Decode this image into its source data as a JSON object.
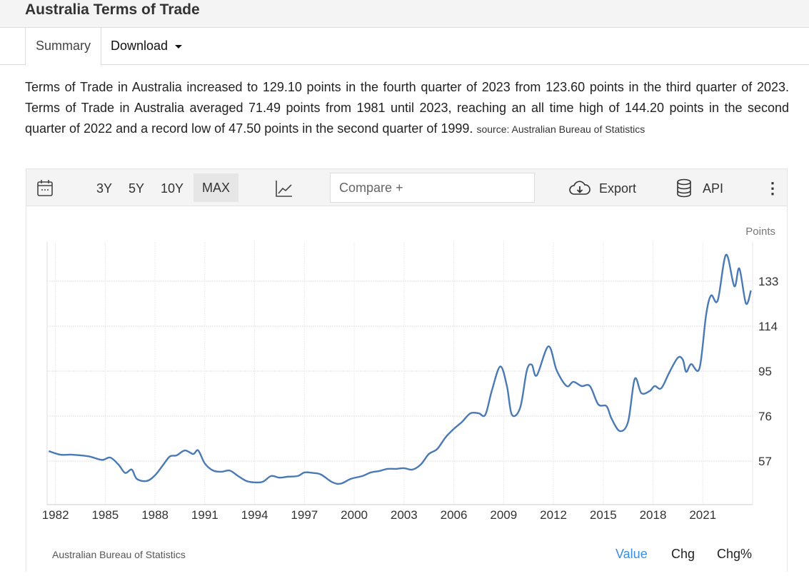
{
  "title": "Australia Terms of Trade",
  "tabs": {
    "summary": "Summary",
    "download": "Download"
  },
  "description": "Terms of Trade in Australia increased to 129.10 points in the fourth quarter of 2023 from 123.60 points in the third quarter of 2023. Terms of Trade in Australia averaged 71.49 points from 1981 until 2023, reaching an all time high of 144.20 points in the second quarter of 2022 and a record low of 47.50 points in the second quarter of 1999.",
  "source": "source: Australian Bureau of Statistics",
  "toolbar": {
    "ranges": [
      "3Y",
      "5Y",
      "10Y",
      "MAX"
    ],
    "active_range": "MAX",
    "compare_placeholder": "Compare +",
    "export": "Export",
    "api": "API"
  },
  "footer": {
    "source": "Australian Bureau of Statistics",
    "value": "Value",
    "chg": "Chg",
    "chgpct": "Chg%"
  },
  "colors": {
    "line": "#4a7ab5",
    "active_link": "#3a8ee6"
  },
  "chart_data": {
    "type": "line",
    "title": "",
    "ylabel": "Points",
    "xlabel": "",
    "xlim": [
      1981.5,
      2024
    ],
    "ylim": [
      38.6,
      149.6
    ],
    "yticks": [
      57,
      76,
      95,
      114,
      133
    ],
    "xticks": [
      1982,
      1985,
      1988,
      1991,
      1994,
      1997,
      2000,
      2003,
      2006,
      2009,
      2012,
      2015,
      2018,
      2021
    ],
    "grid": true,
    "series": [
      {
        "name": "Terms of Trade",
        "x": [
          1981.6,
          1982.3,
          1983,
          1984,
          1984.8,
          1985.3,
          1985.8,
          1986.2,
          1986.6,
          1986.9,
          1987.5,
          1988,
          1988.5,
          1988.9,
          1989.3,
          1989.8,
          1990.3,
          1990.6,
          1991,
          1991.5,
          1992,
          1992.5,
          1993,
          1993.5,
          1994,
          1994.5,
          1995,
          1995.5,
          1996,
          1996.6,
          1997,
          1997.5,
          1998,
          1998.7,
          1999.2,
          1999.8,
          2000.5,
          2001,
          2001.5,
          2002,
          2002.5,
          2003,
          2003.5,
          2004,
          2004.5,
          2005,
          2005.5,
          2006,
          2006.5,
          2007,
          2007.5,
          2007.9,
          2008.3,
          2008.8,
          2009.2,
          2009.5,
          2010,
          2010.4,
          2010.7,
          2011,
          2011.7,
          2012.2,
          2012.8,
          2013.2,
          2013.7,
          2014.2,
          2014.7,
          2015.2,
          2015.5,
          2016,
          2016.5,
          2016.9,
          2017.3,
          2017.8,
          2018.1,
          2018.5,
          2019,
          2019.5,
          2019.8,
          2020,
          2020.3,
          2020.8,
          2021.2,
          2021.5,
          2021.9,
          2022.4,
          2022.9,
          2023.2,
          2023.6,
          2023.9
        ],
        "values": [
          61.2,
          59.7,
          59.7,
          59,
          57.5,
          58.5,
          55.5,
          52,
          53.4,
          49.5,
          48.6,
          51,
          55.5,
          59,
          59.4,
          61.5,
          60,
          61.5,
          56,
          53,
          52.5,
          53,
          50.7,
          48.6,
          48,
          48.3,
          50.7,
          50,
          50.4,
          50.7,
          52.2,
          52,
          51.3,
          48,
          47.5,
          49.5,
          50.7,
          52.2,
          52.8,
          53.7,
          53.7,
          54,
          53.4,
          55.5,
          60,
          62.1,
          67,
          70.6,
          73.6,
          77.2,
          77.2,
          76.6,
          87,
          97,
          88.7,
          76.6,
          79.6,
          95.3,
          97.7,
          93.2,
          105.5,
          95.3,
          88.7,
          90.5,
          88.7,
          88.7,
          81,
          80.2,
          75,
          69.7,
          73.6,
          91.7,
          85.7,
          86.6,
          88.7,
          87.8,
          94.7,
          100.7,
          99.8,
          94.7,
          98,
          96.2,
          118.8,
          127,
          124.9,
          144.2,
          130.9,
          138.4,
          123.6,
          129.1
        ]
      }
    ]
  }
}
